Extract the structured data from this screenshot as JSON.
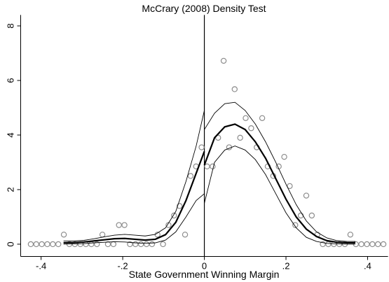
{
  "chart_data": {
    "type": "density-test",
    "title": "McCrary (2008) Density Test",
    "x_label": "State Government Winning Margin",
    "xlim": [
      -0.45,
      0.45
    ],
    "ylim": [
      -0.45,
      8.4
    ],
    "xticks": [
      {
        "value": -0.4,
        "label": "-.4"
      },
      {
        "value": -0.2,
        "label": "-.2"
      },
      0,
      {
        "value": 0.2,
        "label": ".2"
      },
      {
        "value": 0.4,
        "label": ".4"
      }
    ],
    "yticks": [
      0,
      2,
      4,
      6,
      8
    ],
    "cutoff": 0,
    "points": {
      "x": [
        -0.42525,
        -0.41175,
        -0.39825,
        -0.38475,
        -0.37125,
        -0.35775,
        -0.34425,
        -0.33075,
        -0.31725,
        -0.30375,
        -0.29025,
        -0.27675,
        -0.26325,
        -0.24975,
        -0.23625,
        -0.22275,
        -0.20925,
        -0.19575,
        -0.18225,
        -0.16875,
        -0.15525,
        -0.14175,
        -0.12825,
        -0.11475,
        -0.10125,
        -0.08775,
        -0.07425,
        -0.06075,
        -0.04725,
        -0.03375,
        -0.02025,
        -0.00675,
        0.00675,
        0.02025,
        0.03375,
        0.04725,
        0.06075,
        0.07425,
        0.08775,
        0.10125,
        0.11475,
        0.12825,
        0.14175,
        0.15525,
        0.16875,
        0.18225,
        0.19575,
        0.20925,
        0.22275,
        0.23625,
        0.24975,
        0.26325,
        0.27675,
        0.29025,
        0.30375,
        0.31725,
        0.33075,
        0.34425,
        0.35775,
        0.37125,
        0.38475,
        0.39825,
        0.41175,
        0.42525,
        0.43875
      ],
      "y": [
        0,
        0,
        0,
        0,
        0,
        0,
        0.35,
        0,
        0,
        0,
        0,
        0,
        0,
        0.35,
        0,
        0,
        0.7,
        0.7,
        0,
        0,
        0,
        0,
        0,
        0.35,
        0,
        0.7,
        1.05,
        1.4,
        0.35,
        2.5,
        2.85,
        3.55,
        2.85,
        2.85,
        3.9,
        6.72,
        3.55,
        5.68,
        3.9,
        4.62,
        4.25,
        3.55,
        4.62,
        2.85,
        2.5,
        2.85,
        3.2,
        2.13,
        0.7,
        1.05,
        1.78,
        1.05,
        0.35,
        0,
        0,
        0,
        0,
        0,
        0.35,
        0,
        0,
        0,
        0,
        0,
        0
      ],
      "color": "#8c8c8c"
    },
    "fits": [
      {
        "x": [
          -0.345,
          -0.32,
          -0.295,
          -0.27,
          -0.245,
          -0.22,
          -0.195,
          -0.17,
          -0.145,
          -0.12,
          -0.095,
          -0.07,
          -0.045,
          -0.02,
          0
        ],
        "fit": [
          0.05,
          0.06,
          0.08,
          0.12,
          0.16,
          0.2,
          0.21,
          0.18,
          0.15,
          0.18,
          0.35,
          0.8,
          1.6,
          2.6,
          3.4
        ],
        "hi": [
          0.12,
          0.12,
          0.14,
          0.2,
          0.27,
          0.33,
          0.36,
          0.33,
          0.3,
          0.36,
          0.6,
          1.2,
          2.3,
          3.6,
          4.9
        ],
        "lo": [
          0,
          0.01,
          0.02,
          0.05,
          0.07,
          0.09,
          0.08,
          0.05,
          0.03,
          0.05,
          0.15,
          0.45,
          1.0,
          1.6,
          1.85
        ]
      },
      {
        "x": [
          0,
          0.025,
          0.05,
          0.075,
          0.1,
          0.125,
          0.15,
          0.175,
          0.2,
          0.225,
          0.25,
          0.275,
          0.3,
          0.325,
          0.35,
          0.37
        ],
        "fit": [
          2.9,
          3.9,
          4.3,
          4.4,
          4.2,
          3.75,
          3.15,
          2.4,
          1.65,
          1.0,
          0.55,
          0.28,
          0.13,
          0.07,
          0.05,
          0.05
        ],
        "hi": [
          4.2,
          4.8,
          5.15,
          5.2,
          4.9,
          4.4,
          3.75,
          3.0,
          2.2,
          1.45,
          0.85,
          0.45,
          0.23,
          0.13,
          0.1,
          0.1
        ],
        "lo": [
          1.5,
          3.0,
          3.45,
          3.6,
          3.45,
          3.1,
          2.55,
          1.85,
          1.15,
          0.6,
          0.25,
          0.1,
          0.03,
          0.01,
          0,
          0
        ]
      }
    ],
    "line_color": "#000000"
  }
}
